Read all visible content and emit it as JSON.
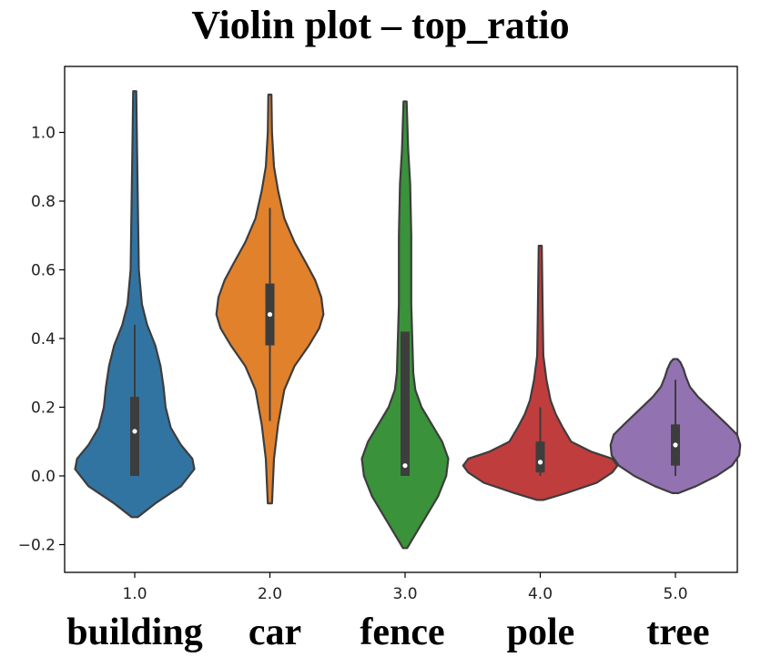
{
  "chart_data": {
    "type": "violin",
    "title": "Violin plot – top_ratio",
    "xlabel": "",
    "ylabel": "",
    "ylim": [
      -0.28,
      1.16
    ],
    "yticks": [
      -0.2,
      0.0,
      0.2,
      0.4,
      0.6,
      0.8,
      1.0
    ],
    "ytick_labels": [
      "−0.2",
      "0.0",
      "0.2",
      "0.4",
      "0.6",
      "0.8",
      "1.0"
    ],
    "x_ticks": [
      1.0,
      2.0,
      3.0,
      4.0,
      5.0
    ],
    "x_tick_labels": [
      "1.0",
      "2.0",
      "3.0",
      "4.0",
      "5.0"
    ],
    "categories": [
      "building",
      "car",
      "fence",
      "pole",
      "tree"
    ],
    "grid": false,
    "series": [
      {
        "category": "building",
        "color": "#3274a1",
        "min": -0.12,
        "max": 1.12,
        "q1": 0.0,
        "median": 0.13,
        "q3": 0.23,
        "whisker_low": 0.0,
        "whisker_high": 0.44,
        "profile": [
          [
            -0.12,
            0.003
          ],
          [
            -0.08,
            0.02
          ],
          [
            -0.03,
            0.045
          ],
          [
            0.02,
            0.058
          ],
          [
            0.05,
            0.056
          ],
          [
            0.09,
            0.045
          ],
          [
            0.14,
            0.035
          ],
          [
            0.2,
            0.03
          ],
          [
            0.26,
            0.028
          ],
          [
            0.32,
            0.025
          ],
          [
            0.38,
            0.02
          ],
          [
            0.44,
            0.012
          ],
          [
            0.5,
            0.007
          ],
          [
            0.6,
            0.004
          ],
          [
            0.8,
            0.003
          ],
          [
            1.0,
            0.002
          ],
          [
            1.12,
            0.0015
          ]
        ]
      },
      {
        "category": "car",
        "color": "#e1812c",
        "min": -0.08,
        "max": 1.11,
        "q1": 0.38,
        "median": 0.47,
        "q3": 0.56,
        "whisker_low": 0.16,
        "whisker_high": 0.78,
        "profile": [
          [
            -0.08,
            0.002
          ],
          [
            0.05,
            0.004
          ],
          [
            0.15,
            0.008
          ],
          [
            0.25,
            0.014
          ],
          [
            0.32,
            0.024
          ],
          [
            0.38,
            0.038
          ],
          [
            0.43,
            0.048
          ],
          [
            0.47,
            0.052
          ],
          [
            0.52,
            0.05
          ],
          [
            0.57,
            0.044
          ],
          [
            0.62,
            0.035
          ],
          [
            0.68,
            0.024
          ],
          [
            0.75,
            0.014
          ],
          [
            0.83,
            0.008
          ],
          [
            0.9,
            0.004
          ],
          [
            1.0,
            0.002
          ],
          [
            1.11,
            0.0015
          ]
        ]
      },
      {
        "category": "fence",
        "color": "#3a923a",
        "min": -0.21,
        "max": 1.09,
        "q1": 0.0,
        "median": 0.03,
        "q3": 0.42,
        "whisker_low": 0.0,
        "whisker_high": 0.42,
        "profile": [
          [
            -0.21,
            0.002
          ],
          [
            -0.17,
            0.01
          ],
          [
            -0.12,
            0.02
          ],
          [
            -0.06,
            0.032
          ],
          [
            0.0,
            0.04
          ],
          [
            0.05,
            0.042
          ],
          [
            0.1,
            0.036
          ],
          [
            0.15,
            0.026
          ],
          [
            0.2,
            0.016
          ],
          [
            0.25,
            0.01
          ],
          [
            0.3,
            0.008
          ],
          [
            0.4,
            0.007
          ],
          [
            0.5,
            0.006
          ],
          [
            0.7,
            0.006
          ],
          [
            0.85,
            0.005
          ],
          [
            0.95,
            0.003
          ],
          [
            1.09,
            0.0015
          ]
        ]
      },
      {
        "category": "pole",
        "color": "#c03d3e",
        "min": -0.07,
        "max": 0.67,
        "q1": 0.01,
        "median": 0.04,
        "q3": 0.1,
        "whisker_low": 0.0,
        "whisker_high": 0.2,
        "profile": [
          [
            -0.07,
            0.003
          ],
          [
            -0.05,
            0.025
          ],
          [
            -0.02,
            0.055
          ],
          [
            0.01,
            0.07
          ],
          [
            0.03,
            0.075
          ],
          [
            0.05,
            0.07
          ],
          [
            0.07,
            0.05
          ],
          [
            0.1,
            0.03
          ],
          [
            0.14,
            0.022
          ],
          [
            0.18,
            0.015
          ],
          [
            0.22,
            0.01
          ],
          [
            0.28,
            0.006
          ],
          [
            0.35,
            0.003
          ],
          [
            0.45,
            0.0025
          ],
          [
            0.55,
            0.002
          ],
          [
            0.67,
            0.0015
          ]
        ]
      },
      {
        "category": "tree",
        "color": "#9372b2",
        "min": -0.05,
        "max": 0.34,
        "q1": 0.03,
        "median": 0.09,
        "q3": 0.15,
        "whisker_low": 0.0,
        "whisker_high": 0.28,
        "profile": [
          [
            -0.05,
            0.003
          ],
          [
            -0.03,
            0.02
          ],
          [
            0.0,
            0.04
          ],
          [
            0.03,
            0.055
          ],
          [
            0.06,
            0.062
          ],
          [
            0.09,
            0.063
          ],
          [
            0.12,
            0.06
          ],
          [
            0.15,
            0.05
          ],
          [
            0.19,
            0.036
          ],
          [
            0.23,
            0.022
          ],
          [
            0.26,
            0.014
          ],
          [
            0.29,
            0.01
          ],
          [
            0.31,
            0.008
          ],
          [
            0.33,
            0.005
          ],
          [
            0.34,
            0.002
          ]
        ]
      }
    ]
  }
}
